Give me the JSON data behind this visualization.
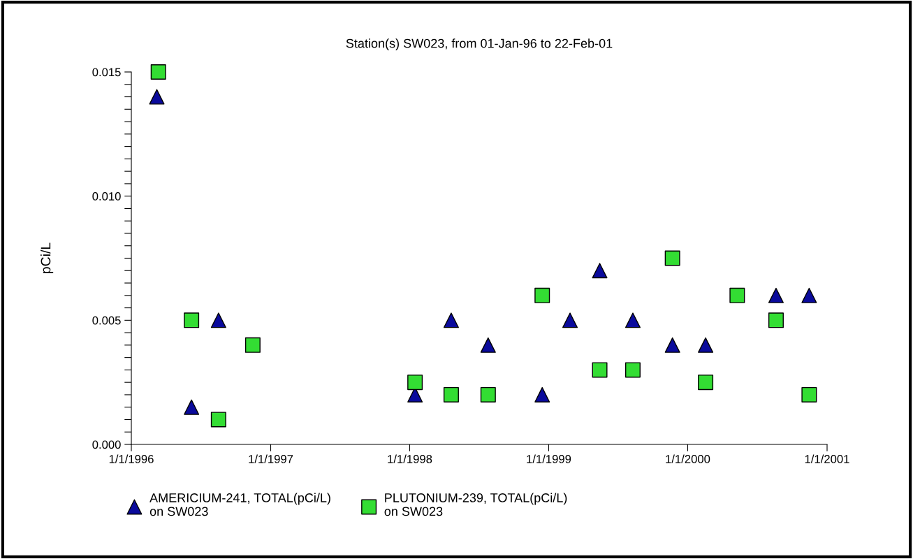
{
  "chart_data": {
    "type": "scatter",
    "title": "Station(s) SW023, from 01-Jan-96 to 22-Feb-01",
    "ylabel": "pCi/L",
    "xlim": [
      "1996-01-01",
      "2001-01-01"
    ],
    "xticks": [
      {
        "value": "1996-01-01",
        "label": "1/1/1996"
      },
      {
        "value": "1997-01-01",
        "label": "1/1/1997"
      },
      {
        "value": "1998-01-01",
        "label": "1/1/1998"
      },
      {
        "value": "1999-01-01",
        "label": "1/1/1999"
      },
      {
        "value": "2000-01-01",
        "label": "1/1/2000"
      },
      {
        "value": "2001-01-01",
        "label": "1/1/2001"
      }
    ],
    "ylim": [
      0,
      0.015
    ],
    "yticks": [
      {
        "value": 0,
        "label": "0.000"
      },
      {
        "value": 0.0005,
        "label": null
      },
      {
        "value": 0.001,
        "label": null
      },
      {
        "value": 0.0015,
        "label": null
      },
      {
        "value": 0.002,
        "label": null
      },
      {
        "value": 0.0025,
        "label": null
      },
      {
        "value": 0.003,
        "label": null
      },
      {
        "value": 0.0035,
        "label": null
      },
      {
        "value": 0.004,
        "label": null
      },
      {
        "value": 0.0045,
        "label": null
      },
      {
        "value": 0.005,
        "label": "0.005"
      },
      {
        "value": 0.0055,
        "label": null
      },
      {
        "value": 0.006,
        "label": null
      },
      {
        "value": 0.0065,
        "label": null
      },
      {
        "value": 0.007,
        "label": null
      },
      {
        "value": 0.0075,
        "label": null
      },
      {
        "value": 0.008,
        "label": null
      },
      {
        "value": 0.0085,
        "label": null
      },
      {
        "value": 0.009,
        "label": null
      },
      {
        "value": 0.0095,
        "label": null
      },
      {
        "value": 0.01,
        "label": "0.010"
      },
      {
        "value": 0.0105,
        "label": null
      },
      {
        "value": 0.011,
        "label": null
      },
      {
        "value": 0.0115,
        "label": null
      },
      {
        "value": 0.012,
        "label": null
      },
      {
        "value": 0.0125,
        "label": null
      },
      {
        "value": 0.013,
        "label": null
      },
      {
        "value": 0.0135,
        "label": null
      },
      {
        "value": 0.014,
        "label": null
      },
      {
        "value": 0.0145,
        "label": null
      },
      {
        "value": 0.015,
        "label": "0.015"
      }
    ],
    "grid": false,
    "legend": "bottom",
    "series": [
      {
        "name": "AMERICIUM-241, TOTAL(pCi/L)\non SW023",
        "color": "#0a0a9c",
        "marker": "triangle",
        "x": [
          "1996-03-08",
          "1996-06-07",
          "1996-08-17",
          "1998-01-15",
          "1998-04-20",
          "1998-07-26",
          "1998-12-15",
          "1999-02-26",
          "1999-05-15",
          "1999-08-10",
          "1999-11-22",
          "2000-02-17",
          "2000-08-20",
          "2000-11-15"
        ],
        "values": [
          0.014,
          0.0015,
          0.005,
          0.002,
          0.005,
          0.004,
          0.002,
          0.005,
          0.007,
          0.005,
          0.004,
          0.004,
          0.006,
          0.006
        ]
      },
      {
        "name": "PLUTONIUM-239, TOTAL(pCi/L)\non SW023",
        "color": "#33dd33",
        "marker": "square",
        "x": [
          "1996-03-12",
          "1996-06-07",
          "1996-08-17",
          "1996-11-15",
          "1998-01-15",
          "1998-04-20",
          "1998-07-26",
          "1998-12-15",
          "1999-05-15",
          "1999-08-10",
          "1999-11-22",
          "2000-02-17",
          "2000-05-10",
          "2000-08-20",
          "2000-11-15"
        ],
        "values": [
          0.015,
          0.005,
          0.001,
          0.004,
          0.0025,
          0.002,
          0.002,
          0.006,
          0.003,
          0.003,
          0.0075,
          0.0025,
          0.006,
          0.005,
          0.002
        ]
      }
    ]
  }
}
